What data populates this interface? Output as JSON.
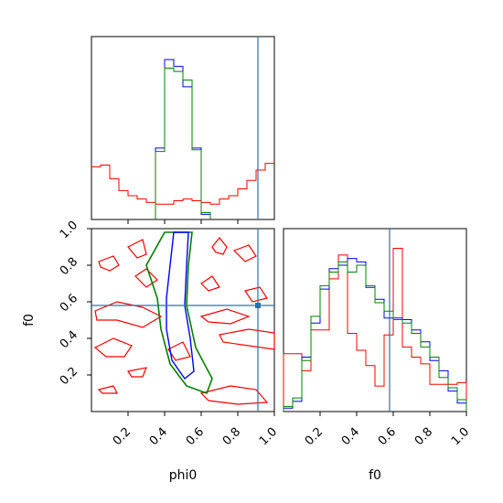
{
  "colors": {
    "red": "#ff0000",
    "blue": "#0000ff",
    "green": "#008000",
    "truth": "#1f77b4"
  },
  "chart_data": [
    {
      "id": "hist-phi0",
      "type": "step-histogram",
      "xlim": [
        0,
        1
      ],
      "bin_edges": [
        0,
        0.05,
        0.1,
        0.15,
        0.2,
        0.25,
        0.3,
        0.35,
        0.4,
        0.45,
        0.5,
        0.55,
        0.6,
        0.65,
        0.7,
        0.75,
        0.8,
        0.85,
        0.9,
        0.95,
        1.0
      ],
      "truth": 0.91,
      "ymax": 1.0,
      "series": [
        {
          "color": "red",
          "values": [
            0.31,
            0.32,
            0.24,
            0.17,
            0.14,
            0.12,
            0.1,
            0.09,
            0.09,
            0.11,
            0.12,
            0.11,
            0.1,
            0.09,
            0.12,
            0.14,
            0.18,
            0.23,
            0.29,
            0.33
          ]
        },
        {
          "color": "blue",
          "values": [
            0,
            0,
            0,
            0,
            0,
            0,
            0,
            0,
            0,
            0,
            0,
            0,
            0,
            0,
            0,
            0,
            0,
            0,
            0,
            0
          ]
        },
        {
          "color": "green",
          "values": [
            0,
            0,
            0,
            0,
            0,
            0,
            0,
            0,
            0,
            0,
            0,
            0,
            0,
            0,
            0,
            0,
            0,
            0,
            0,
            0
          ]
        }
      ],
      "peak_series": [
        {
          "color": "blue",
          "edges": [
            0.35,
            0.4,
            0.45,
            0.5,
            0.55,
            0.6,
            0.65
          ],
          "values": [
            0.42,
            0.94,
            0.9,
            0.78,
            0.42,
            0.03
          ]
        },
        {
          "color": "green",
          "edges": [
            0.35,
            0.4,
            0.45,
            0.5,
            0.55,
            0.6,
            0.65
          ],
          "values": [
            0.4,
            0.89,
            0.87,
            0.82,
            0.41,
            0.04
          ]
        }
      ],
      "red_valley": [
        0.12,
        0.11,
        0.1,
        0.11,
        0.12,
        0.09
      ]
    },
    {
      "id": "contour-phi0-f0",
      "type": "contour",
      "xlabel": "phi0",
      "ylabel": "f0",
      "xlim": [
        0,
        1
      ],
      "ylim": [
        0,
        1
      ],
      "xticks": [
        "0.2",
        "0.4",
        "0.6",
        "0.8",
        "1.0"
      ],
      "xtick_values": [
        0.2,
        0.4,
        0.6,
        0.8,
        1.0
      ],
      "yticks": [
        "0.2",
        "0.4",
        "0.6",
        "0.8",
        "1.0"
      ],
      "ytick_values": [
        0.2,
        0.4,
        0.6,
        0.8,
        1.0
      ],
      "truth": {
        "x": 0.91,
        "y": 0.58
      },
      "blue_outline": [
        [
          0.45,
          0.98
        ],
        [
          0.43,
          0.8
        ],
        [
          0.41,
          0.62
        ],
        [
          0.41,
          0.45
        ],
        [
          0.44,
          0.28
        ],
        [
          0.51,
          0.18
        ],
        [
          0.56,
          0.22
        ],
        [
          0.54,
          0.4
        ],
        [
          0.51,
          0.58
        ],
        [
          0.52,
          0.8
        ],
        [
          0.53,
          0.98
        ]
      ],
      "green_outline": [
        [
          0.4,
          0.98
        ],
        [
          0.3,
          0.8
        ],
        [
          0.36,
          0.62
        ],
        [
          0.38,
          0.45
        ],
        [
          0.43,
          0.26
        ],
        [
          0.52,
          0.14
        ],
        [
          0.63,
          0.1
        ],
        [
          0.66,
          0.18
        ],
        [
          0.57,
          0.35
        ],
        [
          0.52,
          0.58
        ],
        [
          0.53,
          0.8
        ],
        [
          0.55,
          0.98
        ]
      ],
      "red_blobs": [
        [
          [
            0.04,
            0.82
          ],
          [
            0.12,
            0.85
          ],
          [
            0.15,
            0.8
          ],
          [
            0.1,
            0.77
          ],
          [
            0.05,
            0.79
          ]
        ],
        [
          [
            0.2,
            0.9
          ],
          [
            0.28,
            0.94
          ],
          [
            0.3,
            0.86
          ],
          [
            0.25,
            0.84
          ]
        ],
        [
          [
            0.66,
            0.9
          ],
          [
            0.7,
            0.95
          ],
          [
            0.74,
            0.9
          ],
          [
            0.72,
            0.86
          ],
          [
            0.68,
            0.87
          ]
        ],
        [
          [
            0.78,
            0.88
          ],
          [
            0.86,
            0.91
          ],
          [
            0.9,
            0.85
          ],
          [
            0.84,
            0.82
          ]
        ],
        [
          [
            0.02,
            0.55
          ],
          [
            0.14,
            0.6
          ],
          [
            0.28,
            0.57
          ],
          [
            0.38,
            0.52
          ],
          [
            0.28,
            0.46
          ],
          [
            0.14,
            0.5
          ],
          [
            0.03,
            0.5
          ]
        ],
        [
          [
            0.6,
            0.52
          ],
          [
            0.74,
            0.56
          ],
          [
            0.86,
            0.52
          ],
          [
            0.76,
            0.48
          ],
          [
            0.64,
            0.49
          ]
        ],
        [
          [
            0.7,
            0.42
          ],
          [
            0.86,
            0.45
          ],
          [
            1.0,
            0.43
          ],
          [
            1.0,
            0.34
          ],
          [
            0.86,
            0.36
          ],
          [
            0.72,
            0.38
          ]
        ],
        [
          [
            0.02,
            0.35
          ],
          [
            0.12,
            0.4
          ],
          [
            0.22,
            0.36
          ],
          [
            0.18,
            0.3
          ],
          [
            0.08,
            0.3
          ]
        ],
        [
          [
            0.2,
            0.22
          ],
          [
            0.3,
            0.24
          ],
          [
            0.28,
            0.19
          ],
          [
            0.22,
            0.19
          ]
        ],
        [
          [
            0.04,
            0.12
          ],
          [
            0.12,
            0.14
          ],
          [
            0.14,
            0.1
          ],
          [
            0.06,
            0.1
          ]
        ],
        [
          [
            0.6,
            0.1
          ],
          [
            0.76,
            0.14
          ],
          [
            0.9,
            0.12
          ],
          [
            0.96,
            0.05
          ],
          [
            0.8,
            0.04
          ],
          [
            0.64,
            0.06
          ]
        ],
        [
          [
            0.24,
            0.74
          ],
          [
            0.3,
            0.78
          ],
          [
            0.36,
            0.72
          ],
          [
            0.3,
            0.68
          ]
        ],
        [
          [
            0.6,
            0.7
          ],
          [
            0.66,
            0.74
          ],
          [
            0.7,
            0.68
          ],
          [
            0.64,
            0.66
          ]
        ],
        [
          [
            0.84,
            0.66
          ],
          [
            0.92,
            0.68
          ],
          [
            0.96,
            0.62
          ],
          [
            0.88,
            0.6
          ]
        ],
        [
          [
            0.42,
            0.34
          ],
          [
            0.5,
            0.38
          ],
          [
            0.54,
            0.3
          ],
          [
            0.46,
            0.28
          ]
        ]
      ]
    },
    {
      "id": "hist-f0",
      "type": "step-histogram",
      "xlabel": "f0",
      "xlim": [
        0,
        1
      ],
      "xticks": [
        "0.2",
        "0.4",
        "0.6",
        "0.8",
        "1.0"
      ],
      "xtick_values": [
        0.2,
        0.4,
        0.6,
        0.8,
        1.0
      ],
      "bin_edges": [
        0,
        0.05,
        0.1,
        0.15,
        0.2,
        0.25,
        0.3,
        0.35,
        0.4,
        0.45,
        0.5,
        0.55,
        0.6,
        0.65,
        0.7,
        0.75,
        0.8,
        0.85,
        0.9,
        0.95,
        1.0
      ],
      "truth": 0.58,
      "ymax": 1.0,
      "series": [
        {
          "color": "red",
          "values": [
            0.34,
            0.34,
            0.24,
            0.48,
            0.48,
            0.78,
            0.92,
            0.46,
            0.36,
            0.27,
            0.15,
            0.45,
            0.96,
            0.38,
            0.32,
            0.28,
            0.16,
            0.16,
            0.16,
            0.17
          ]
        },
        {
          "color": "blue",
          "values": [
            0.02,
            0.06,
            0.32,
            0.52,
            0.72,
            0.84,
            0.86,
            0.9,
            0.88,
            0.73,
            0.66,
            0.55,
            0.55,
            0.54,
            0.48,
            0.41,
            0.3,
            0.24,
            0.12,
            0.05
          ]
        },
        {
          "color": "green",
          "values": [
            0.03,
            0.08,
            0.3,
            0.56,
            0.74,
            0.82,
            0.88,
            0.82,
            0.86,
            0.74,
            0.64,
            0.59,
            0.54,
            0.52,
            0.46,
            0.38,
            0.32,
            0.2,
            0.14,
            0.07
          ]
        }
      ]
    }
  ]
}
